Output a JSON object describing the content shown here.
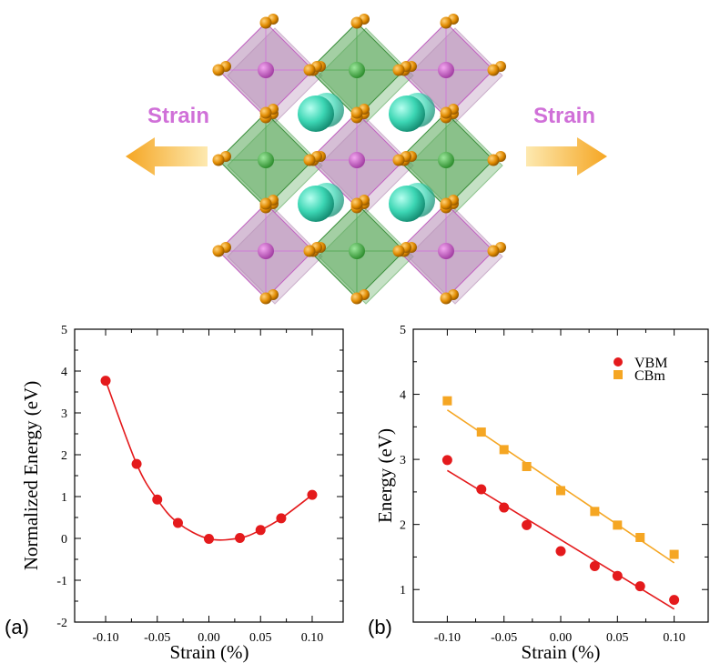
{
  "colors": {
    "red": "#e41a1c",
    "orange": "#f5a623",
    "strain_text": "#d070d8",
    "green_octa": "#5aa85a",
    "purple_octa": "#b48ab4",
    "cation": "#3cd6b4",
    "anion": "#e08a00"
  },
  "illustration": {
    "strain_left": "Strain",
    "strain_right": "Strain"
  },
  "chart_data": [
    {
      "panel": "(a)",
      "type": "line",
      "title": "",
      "xlabel": "Strain (%)",
      "ylabel": "Normalized Energy (eV)",
      "xlim": [
        -0.13,
        0.13
      ],
      "ylim": [
        -2,
        5
      ],
      "xticks": [
        -0.1,
        -0.05,
        0.0,
        0.05,
        0.1
      ],
      "xtick_labels": [
        "-0.10",
        "-0.05",
        "0.00",
        "0.05",
        "0.10"
      ],
      "yticks": [
        -2,
        -1,
        0,
        1,
        2,
        3,
        4,
        5
      ],
      "ytick_labels": [
        "-2",
        "-1",
        "0",
        "1",
        "2",
        "3",
        "4",
        "5"
      ],
      "series": [
        {
          "name": "Normalized Energy",
          "color": "#e41a1c",
          "marker": "circle",
          "x": [
            -0.1,
            -0.07,
            -0.05,
            -0.03,
            0.0,
            0.03,
            0.05,
            0.07,
            0.1
          ],
          "y": [
            3.77,
            1.78,
            0.93,
            0.37,
            -0.01,
            0.01,
            0.2,
            0.48,
            1.04
          ]
        }
      ]
    },
    {
      "panel": "(b)",
      "type": "scatter",
      "title": "",
      "xlabel": "Strain (%)",
      "ylabel": "Energy (eV)",
      "xlim": [
        -0.13,
        0.13
      ],
      "ylim": [
        0.5,
        5
      ],
      "xticks": [
        -0.1,
        -0.05,
        0.0,
        0.05,
        0.1
      ],
      "xtick_labels": [
        "-0.10",
        "-0.05",
        "0.00",
        "0.05",
        "0.10"
      ],
      "yticks": [
        1,
        2,
        3,
        4,
        5
      ],
      "ytick_labels": [
        "1",
        "2",
        "3",
        "4",
        "5"
      ],
      "legend": {
        "position": "top-right",
        "entries": [
          "VBM",
          "CBm"
        ]
      },
      "series": [
        {
          "name": "VBM",
          "color": "#e41a1c",
          "marker": "circle",
          "x": [
            -0.1,
            -0.07,
            -0.05,
            -0.03,
            0.0,
            0.03,
            0.05,
            0.07,
            0.1
          ],
          "y": [
            2.99,
            2.54,
            2.26,
            1.99,
            1.59,
            1.36,
            1.21,
            1.05,
            0.84
          ],
          "fit": {
            "x": [
              -0.1,
              0.1
            ],
            "y": [
              2.83,
              0.7
            ]
          }
        },
        {
          "name": "CBm",
          "color": "#f5a623",
          "marker": "square",
          "x": [
            -0.1,
            -0.07,
            -0.05,
            -0.03,
            0.0,
            0.03,
            0.05,
            0.07,
            0.1
          ],
          "y": [
            3.9,
            3.42,
            3.15,
            2.89,
            2.52,
            2.2,
            1.99,
            1.8,
            1.54
          ],
          "fit": {
            "x": [
              -0.1,
              0.1
            ],
            "y": [
              3.76,
              1.41
            ]
          }
        }
      ]
    }
  ]
}
